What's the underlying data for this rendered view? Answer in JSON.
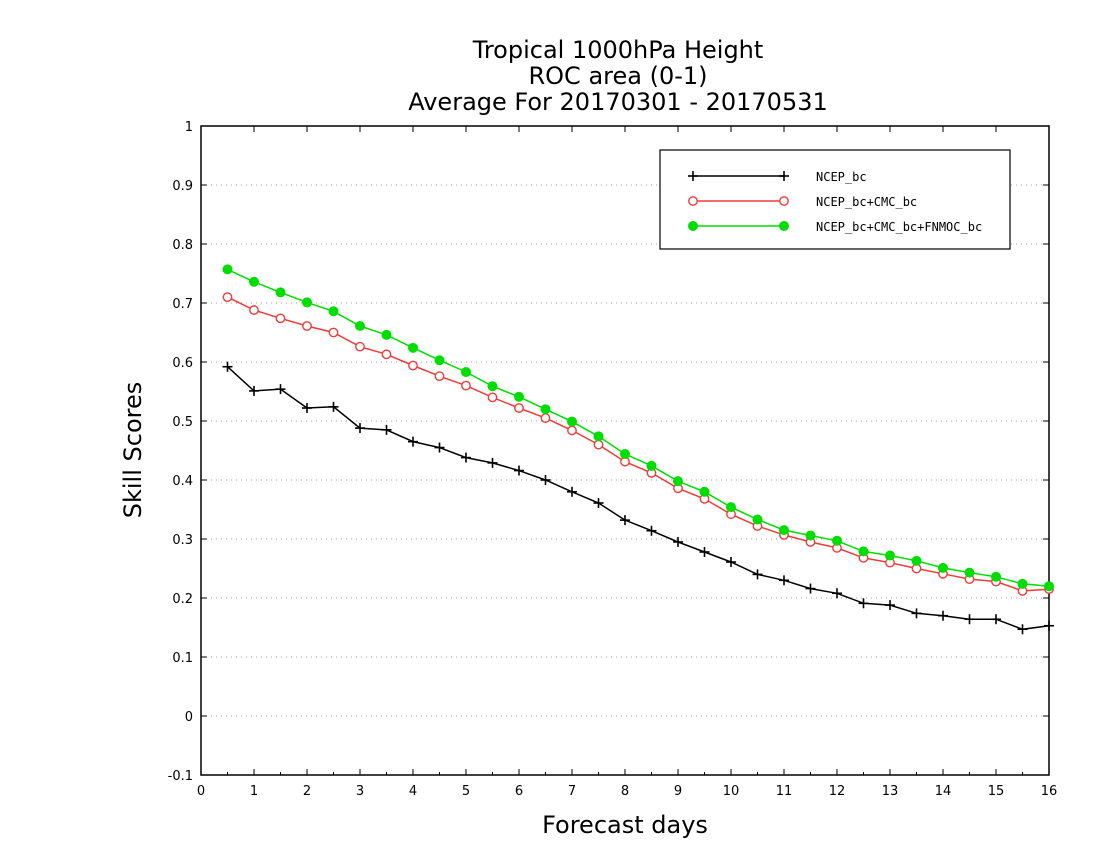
{
  "chart_data": {
    "type": "line",
    "title_lines": [
      "Tropical 1000hPa Height",
      "ROC area (0-1)",
      "Average For 20170301 - 20170531"
    ],
    "xlabel": "Forecast days",
    "ylabel": "Skill Scores",
    "xlim": [
      0,
      16
    ],
    "ylim": [
      -0.1,
      1
    ],
    "xticks": [
      0,
      1,
      2,
      3,
      4,
      5,
      6,
      7,
      8,
      9,
      10,
      11,
      12,
      13,
      14,
      15,
      16
    ],
    "yticks": [
      -0.1,
      0,
      0.1,
      0.2,
      0.3,
      0.4,
      0.5,
      0.6,
      0.7,
      0.8,
      0.9,
      1
    ],
    "ytick_labels": [
      "-0.1",
      "0",
      "0.1",
      "0.2",
      "0.3",
      "0.4",
      "0.5",
      "0.6",
      "0.7",
      "0.8",
      "0.9",
      "1"
    ],
    "grid": "horizontal-dotted",
    "legend_position": "top-right",
    "x": [
      0.5,
      1,
      1.5,
      2,
      2.5,
      3,
      3.5,
      4,
      4.5,
      5,
      5.5,
      6,
      6.5,
      7,
      7.5,
      8,
      8.5,
      9,
      9.5,
      10,
      10.5,
      11,
      11.5,
      12,
      12.5,
      13,
      13.5,
      14,
      14.5,
      15,
      15.5,
      16
    ],
    "series": [
      {
        "name": "NCEP_bc",
        "color": "#000000",
        "marker": "plus",
        "values": [
          0.592,
          0.551,
          0.554,
          0.522,
          0.524,
          0.488,
          0.485,
          0.465,
          0.455,
          0.438,
          0.429,
          0.416,
          0.4,
          0.38,
          0.361,
          0.332,
          0.314,
          0.295,
          0.278,
          0.261,
          0.24,
          0.23,
          0.216,
          0.208,
          0.191,
          0.188,
          0.174,
          0.17,
          0.164,
          0.164,
          0.147,
          0.153
        ]
      },
      {
        "name": "NCEP_bc+CMC_bc",
        "color": "#ee3b3b",
        "marker": "open-circle",
        "values": [
          0.71,
          0.688,
          0.674,
          0.661,
          0.65,
          0.626,
          0.613,
          0.594,
          0.576,
          0.56,
          0.54,
          0.522,
          0.505,
          0.484,
          0.46,
          0.431,
          0.412,
          0.386,
          0.368,
          0.342,
          0.322,
          0.307,
          0.295,
          0.285,
          0.268,
          0.26,
          0.25,
          0.241,
          0.232,
          0.228,
          0.212,
          0.215
        ]
      },
      {
        "name": "NCEP_bc+CMC_bc+FNMOC_bc",
        "color": "#00dd00",
        "marker": "filled-circle",
        "values": [
          0.757,
          0.736,
          0.718,
          0.701,
          0.686,
          0.661,
          0.646,
          0.624,
          0.603,
          0.583,
          0.559,
          0.541,
          0.52,
          0.499,
          0.474,
          0.444,
          0.424,
          0.398,
          0.38,
          0.354,
          0.333,
          0.315,
          0.306,
          0.297,
          0.279,
          0.272,
          0.263,
          0.251,
          0.243,
          0.236,
          0.224,
          0.22
        ]
      }
    ]
  }
}
